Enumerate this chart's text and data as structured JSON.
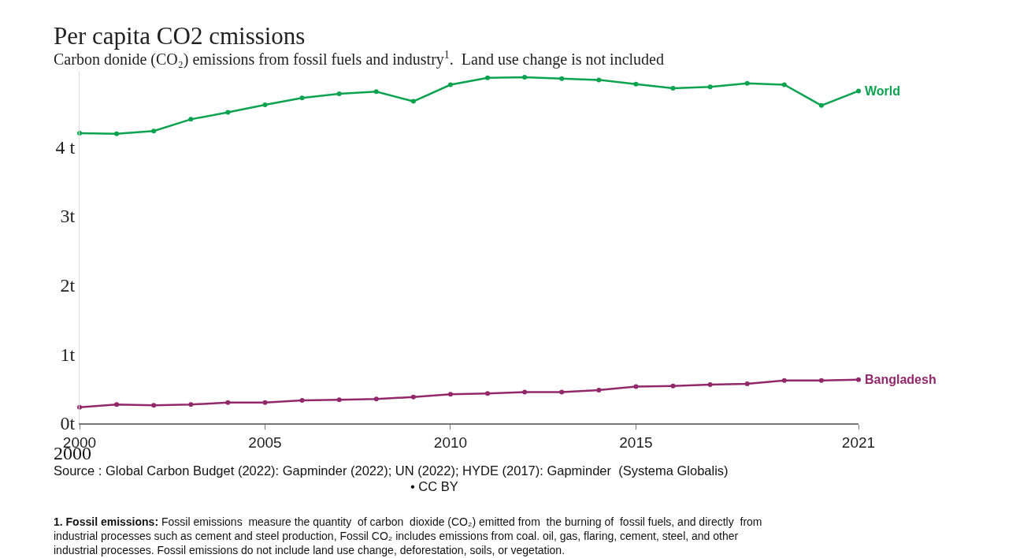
{
  "chart_data": {
    "type": "line",
    "title": "Per capita CO2 cmissions",
    "subtitle": "Carbon donide (CO₂) emissions from fossil fuels and industry$^{1}$.  Land use change is not included",
    "x": [
      2000,
      2001,
      2002,
      2003,
      2004,
      2005,
      2006,
      2007,
      2008,
      2009,
      2010,
      2011,
      2012,
      2013,
      2014,
      2015,
      2016,
      2017,
      2018,
      2019,
      2020,
      2021
    ],
    "series": [
      {
        "name": "World",
        "color": "#0ca350",
        "values": [
          4.2,
          4.19,
          4.23,
          4.4,
          4.5,
          4.61,
          4.71,
          4.77,
          4.8,
          4.66,
          4.9,
          5.0,
          5.01,
          4.99,
          4.97,
          4.91,
          4.85,
          4.87,
          4.92,
          4.9,
          4.6,
          4.81
        ]
      },
      {
        "name": "Bangladesh",
        "color": "#92286a",
        "values": [
          0.23,
          0.27,
          0.26,
          0.27,
          0.3,
          0.3,
          0.33,
          0.34,
          0.35,
          0.38,
          0.42,
          0.43,
          0.45,
          0.45,
          0.48,
          0.53,
          0.54,
          0.56,
          0.57,
          0.62,
          0.62,
          0.63
        ]
      }
    ],
    "xlim": [
      2000,
      2021
    ],
    "xticks": [
      2000,
      2005,
      2010,
      2015,
      2021
    ],
    "ylim": [
      0,
      5.1
    ],
    "yticks": [
      {
        "value": 0,
        "label": "0t"
      },
      {
        "value": 1,
        "label": "1t"
      },
      {
        "value": 2,
        "label": "2t"
      },
      {
        "value": 3,
        "label": "3t"
      },
      {
        "value": 4,
        "label": "4 t"
      }
    ],
    "legend": false,
    "marker": "circle",
    "line_style": "solid",
    "annotations": [
      "2000",
      "Source : Global Carbon Budget (2022): Gapminder (2022); UN (2022); HYDE (2017): Gapminder  (Systema Globalis)",
      "• CC BY",
      "1. Fossil emissions: Fossil emissions  measure the quantity  of carbon  dioxide (CO₂) emitted from  the burning of  fossil fuels, and directly  from industrial processes such as cement and steel production, Fossil CO₂ includes emissions from coal. oil, gas, flaring, cement, steel, and other industrial processes. Fossil emissions do not include land use change, deforestation, soils, or vegetation."
    ]
  }
}
